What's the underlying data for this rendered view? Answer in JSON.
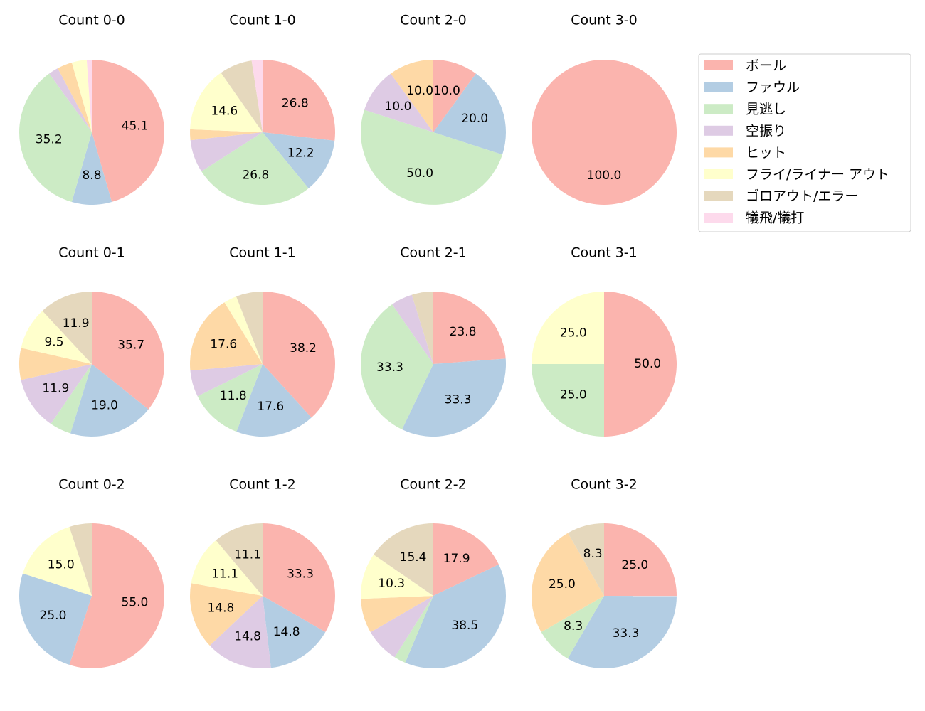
{
  "chart_data": [
    {
      "type": "pie",
      "title": "Count 0-0",
      "values": [
        45.1,
        8.8,
        35.2,
        2.2,
        3.3,
        3.3,
        0,
        1.1
      ],
      "value_labels": [
        "45.1",
        "8.8",
        "35.2",
        null,
        null,
        null,
        null,
        null
      ]
    },
    {
      "type": "pie",
      "title": "Count 1-0",
      "values": [
        26.8,
        12.2,
        26.8,
        7.3,
        2.4,
        14.6,
        7.3,
        2.4
      ],
      "value_labels": [
        "26.8",
        "12.2",
        "26.8",
        null,
        null,
        "14.6",
        null,
        null
      ]
    },
    {
      "type": "pie",
      "title": "Count 2-0",
      "values": [
        10.0,
        20.0,
        50.0,
        10.0,
        10.0,
        0,
        0,
        0
      ],
      "value_labels": [
        "10.0",
        "20.0",
        "50.0",
        "10.0",
        "10.0",
        null,
        null,
        null
      ]
    },
    {
      "type": "pie",
      "title": "Count 3-0",
      "values": [
        100.0,
        0,
        0,
        0,
        0,
        0,
        0,
        0
      ],
      "value_labels": [
        "100.0",
        null,
        null,
        null,
        null,
        null,
        null,
        null
      ]
    },
    {
      "type": "pie",
      "title": "Count 0-1",
      "values": [
        35.7,
        19.0,
        4.8,
        11.9,
        7.1,
        9.5,
        11.9,
        0
      ],
      "value_labels": [
        "35.7",
        "19.0",
        null,
        "11.9",
        null,
        "9.5",
        "11.9",
        null
      ]
    },
    {
      "type": "pie",
      "title": "Count 1-1",
      "values": [
        38.2,
        17.6,
        11.8,
        5.9,
        17.6,
        2.9,
        5.9,
        0
      ],
      "value_labels": [
        "38.2",
        "17.6",
        "11.8",
        null,
        "17.6",
        null,
        null,
        null
      ]
    },
    {
      "type": "pie",
      "title": "Count 2-1",
      "values": [
        23.8,
        33.3,
        33.3,
        4.8,
        0,
        0,
        4.8,
        0
      ],
      "value_labels": [
        "23.8",
        "33.3",
        "33.3",
        null,
        null,
        null,
        null,
        null
      ]
    },
    {
      "type": "pie",
      "title": "Count 3-1",
      "values": [
        50.0,
        0,
        25.0,
        0,
        0,
        25.0,
        0,
        0
      ],
      "value_labels": [
        "50.0",
        null,
        "25.0",
        null,
        null,
        "25.0",
        null,
        null
      ]
    },
    {
      "type": "pie",
      "title": "Count 0-2",
      "values": [
        55.0,
        25.0,
        0,
        0,
        0,
        15.0,
        5.0,
        0
      ],
      "value_labels": [
        "55.0",
        "25.0",
        null,
        null,
        null,
        "15.0",
        null,
        null
      ]
    },
    {
      "type": "pie",
      "title": "Count 1-2",
      "values": [
        33.3,
        14.8,
        0,
        14.8,
        14.8,
        11.1,
        11.1,
        0
      ],
      "value_labels": [
        "33.3",
        "14.8",
        null,
        "14.8",
        "14.8",
        "11.1",
        "11.1",
        null
      ]
    },
    {
      "type": "pie",
      "title": "Count 2-2",
      "values": [
        17.9,
        38.5,
        2.6,
        7.7,
        7.7,
        10.3,
        15.4,
        0
      ],
      "value_labels": [
        "17.9",
        "38.5",
        null,
        null,
        null,
        "10.3",
        "15.4",
        null
      ]
    },
    {
      "type": "pie",
      "title": "Count 3-2",
      "values": [
        25.0,
        33.3,
        8.3,
        0,
        25.0,
        0,
        8.3,
        0
      ],
      "value_labels": [
        "25.0",
        "33.3",
        "8.3",
        null,
        "25.0",
        null,
        "8.3",
        null
      ]
    }
  ],
  "legend": {
    "entries": [
      {
        "name": "ボール",
        "color": "#fbb4ae"
      },
      {
        "name": "ファウル",
        "color": "#b3cde3"
      },
      {
        "name": "見逃し",
        "color": "#ccebc5"
      },
      {
        "name": "空振り",
        "color": "#decbe4"
      },
      {
        "name": "ヒット",
        "color": "#fed9a6"
      },
      {
        "name": "フライ/ライナー アウト",
        "color": "#ffffcc"
      },
      {
        "name": "ゴロアウト/エラー",
        "color": "#e5d8bd"
      },
      {
        "name": "犠飛/犠打",
        "color": "#fddaec"
      }
    ]
  }
}
